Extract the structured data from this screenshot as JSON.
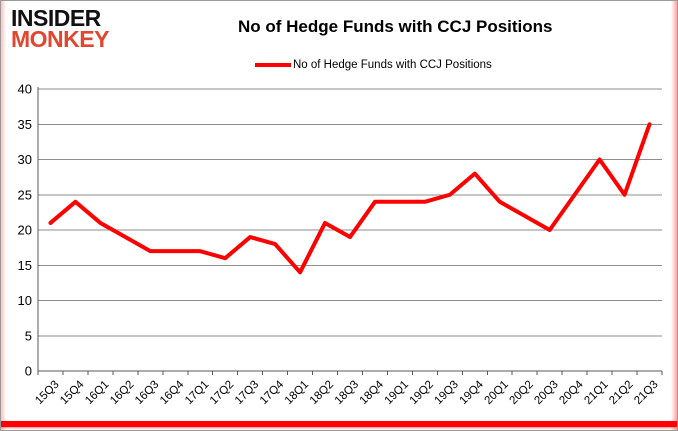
{
  "branding": {
    "logo_line1": "INSIDER",
    "logo_line2": "MONKEY",
    "logo_color": "#e1472e"
  },
  "header": {
    "title": "No of Hedge Funds with CCJ Positions"
  },
  "legend": {
    "label": "No of Hedge Funds with CCJ Positions",
    "line_color": "#ff0000"
  },
  "chart_data": {
    "type": "line",
    "title": "No of Hedge Funds with CCJ Positions",
    "categories": [
      "15Q3",
      "15Q4",
      "16Q1",
      "16Q2",
      "16Q3",
      "16Q4",
      "17Q1",
      "17Q2",
      "17Q3",
      "17Q4",
      "18Q1",
      "18Q2",
      "18Q3",
      "18Q4",
      "19Q1",
      "19Q2",
      "19Q3",
      "19Q4",
      "20Q1",
      "20Q2",
      "20Q3",
      "20Q4",
      "21Q1",
      "21Q2",
      "21Q3"
    ],
    "series": [
      {
        "name": "No of Hedge Funds with CCJ Positions",
        "color": "#ff0000",
        "values": [
          21,
          24,
          21,
          19,
          17,
          17,
          17,
          16,
          19,
          18,
          14,
          21,
          19,
          24,
          24,
          24,
          25,
          28,
          24,
          22,
          20,
          25,
          30,
          25,
          35
        ]
      }
    ],
    "ylim": [
      0,
      40
    ],
    "yticks": [
      0,
      5,
      10,
      15,
      20,
      25,
      30,
      35,
      40
    ],
    "xlabel": "",
    "ylabel": "",
    "grid": "horizontal",
    "legend_position": "top",
    "x_label_rotation": -45
  },
  "colors": {
    "accent_red": "#ff0000",
    "gridline": "#8e8e8e",
    "axis": "#595959",
    "text": "#000000",
    "bottom_bar": "#ff0000"
  }
}
